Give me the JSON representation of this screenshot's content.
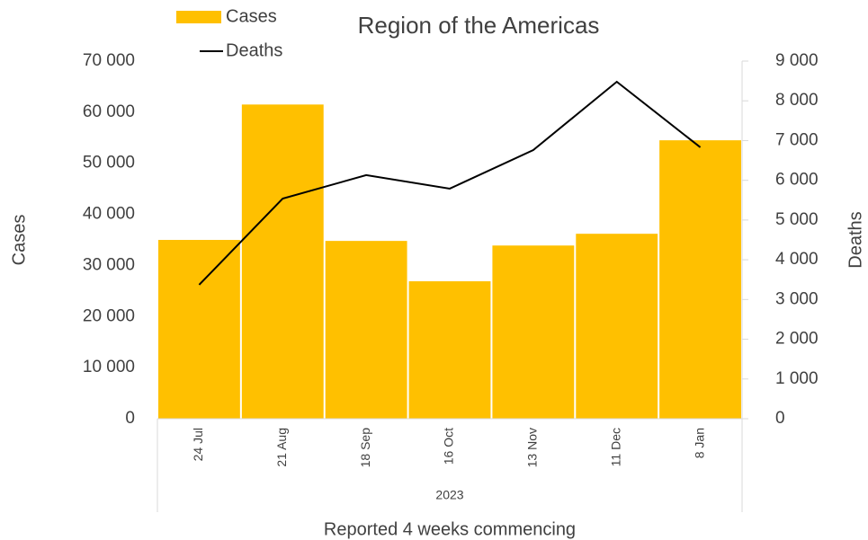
{
  "chart_data": {
    "type": "bar-line",
    "title": "Region of the Americas",
    "x_label": "Reported 4 weeks commencing",
    "group_label": "2023",
    "y_label": "Cases",
    "y2_label": "Deaths",
    "categories": [
      "24 Jul",
      "21 Aug",
      "18 Sep",
      "16 Oct",
      "13 Nov",
      "11 Dec",
      "8 Jan"
    ],
    "series": [
      {
        "name": "Cases",
        "type": "bar",
        "color": "#FFC000",
        "values": [
          35000,
          61500,
          34800,
          26900,
          33900,
          36200,
          54500
        ]
      },
      {
        "name": "Deaths",
        "type": "line",
        "axis": "y2",
        "color": "#000000",
        "values": [
          3370,
          5540,
          6130,
          5790,
          6760,
          8480,
          6830
        ]
      }
    ],
    "ylim": [
      0,
      70000
    ],
    "yticks": [
      0,
      {
        "value": 10000,
        "label": "10 000"
      },
      {
        "value": 20000,
        "label": "20 000"
      },
      {
        "value": 30000,
        "label": "30 000"
      },
      {
        "value": 40000,
        "label": "40 000"
      },
      {
        "value": 50000,
        "label": "50 000"
      },
      {
        "value": 60000,
        "label": "60 000"
      },
      {
        "value": 70000,
        "label": "70 000"
      }
    ],
    "y2lim": [
      0,
      9000
    ],
    "y2ticks": [
      0,
      {
        "value": 1000,
        "label": "1 000"
      },
      {
        "value": 2000,
        "label": "2 000"
      },
      {
        "value": 3000,
        "label": "3 000"
      },
      {
        "value": 4000,
        "label": "4 000"
      },
      {
        "value": 5000,
        "label": "5 000"
      },
      {
        "value": 6000,
        "label": "6 000"
      },
      {
        "value": 7000,
        "label": "7 000"
      },
      {
        "value": 8000,
        "label": "8 000"
      },
      {
        "value": 9000,
        "label": "9 000"
      }
    ],
    "legend": "top-left",
    "grid": false
  }
}
